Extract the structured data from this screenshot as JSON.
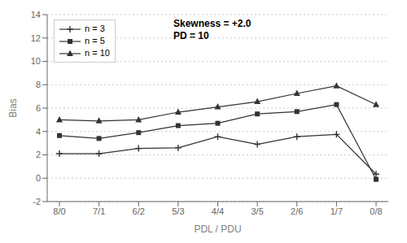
{
  "chart_data": {
    "type": "line",
    "xlabel": "PDL / PDU",
    "ylabel": "Bias",
    "annotations": [
      "Skewness = +2.0",
      "PD = 10"
    ],
    "categories": [
      "8/0",
      "7/1",
      "6/2",
      "5/3",
      "4/4",
      "3/5",
      "2/6",
      "1/7",
      "0/8"
    ],
    "series": [
      {
        "name": "n = 3",
        "color": "#333333",
        "marker": "plus",
        "values": [
          2.1,
          2.1,
          2.55,
          2.6,
          3.55,
          2.9,
          3.55,
          3.75,
          0.35
        ]
      },
      {
        "name": "n = 5",
        "color": "#333333",
        "marker": "square",
        "values": [
          3.65,
          3.4,
          3.9,
          4.5,
          4.7,
          5.5,
          5.7,
          6.3,
          -0.1
        ]
      },
      {
        "name": "n = 10",
        "color": "#333333",
        "marker": "triangle",
        "values": [
          5.0,
          4.9,
          5.0,
          5.65,
          6.1,
          6.55,
          7.25,
          7.9,
          6.3
        ]
      }
    ],
    "ylim": [
      -2,
      14
    ],
    "yticks": [
      -2,
      0,
      2,
      4,
      6,
      8,
      10,
      12,
      14
    ],
    "grid": true,
    "legend": "upper left"
  }
}
